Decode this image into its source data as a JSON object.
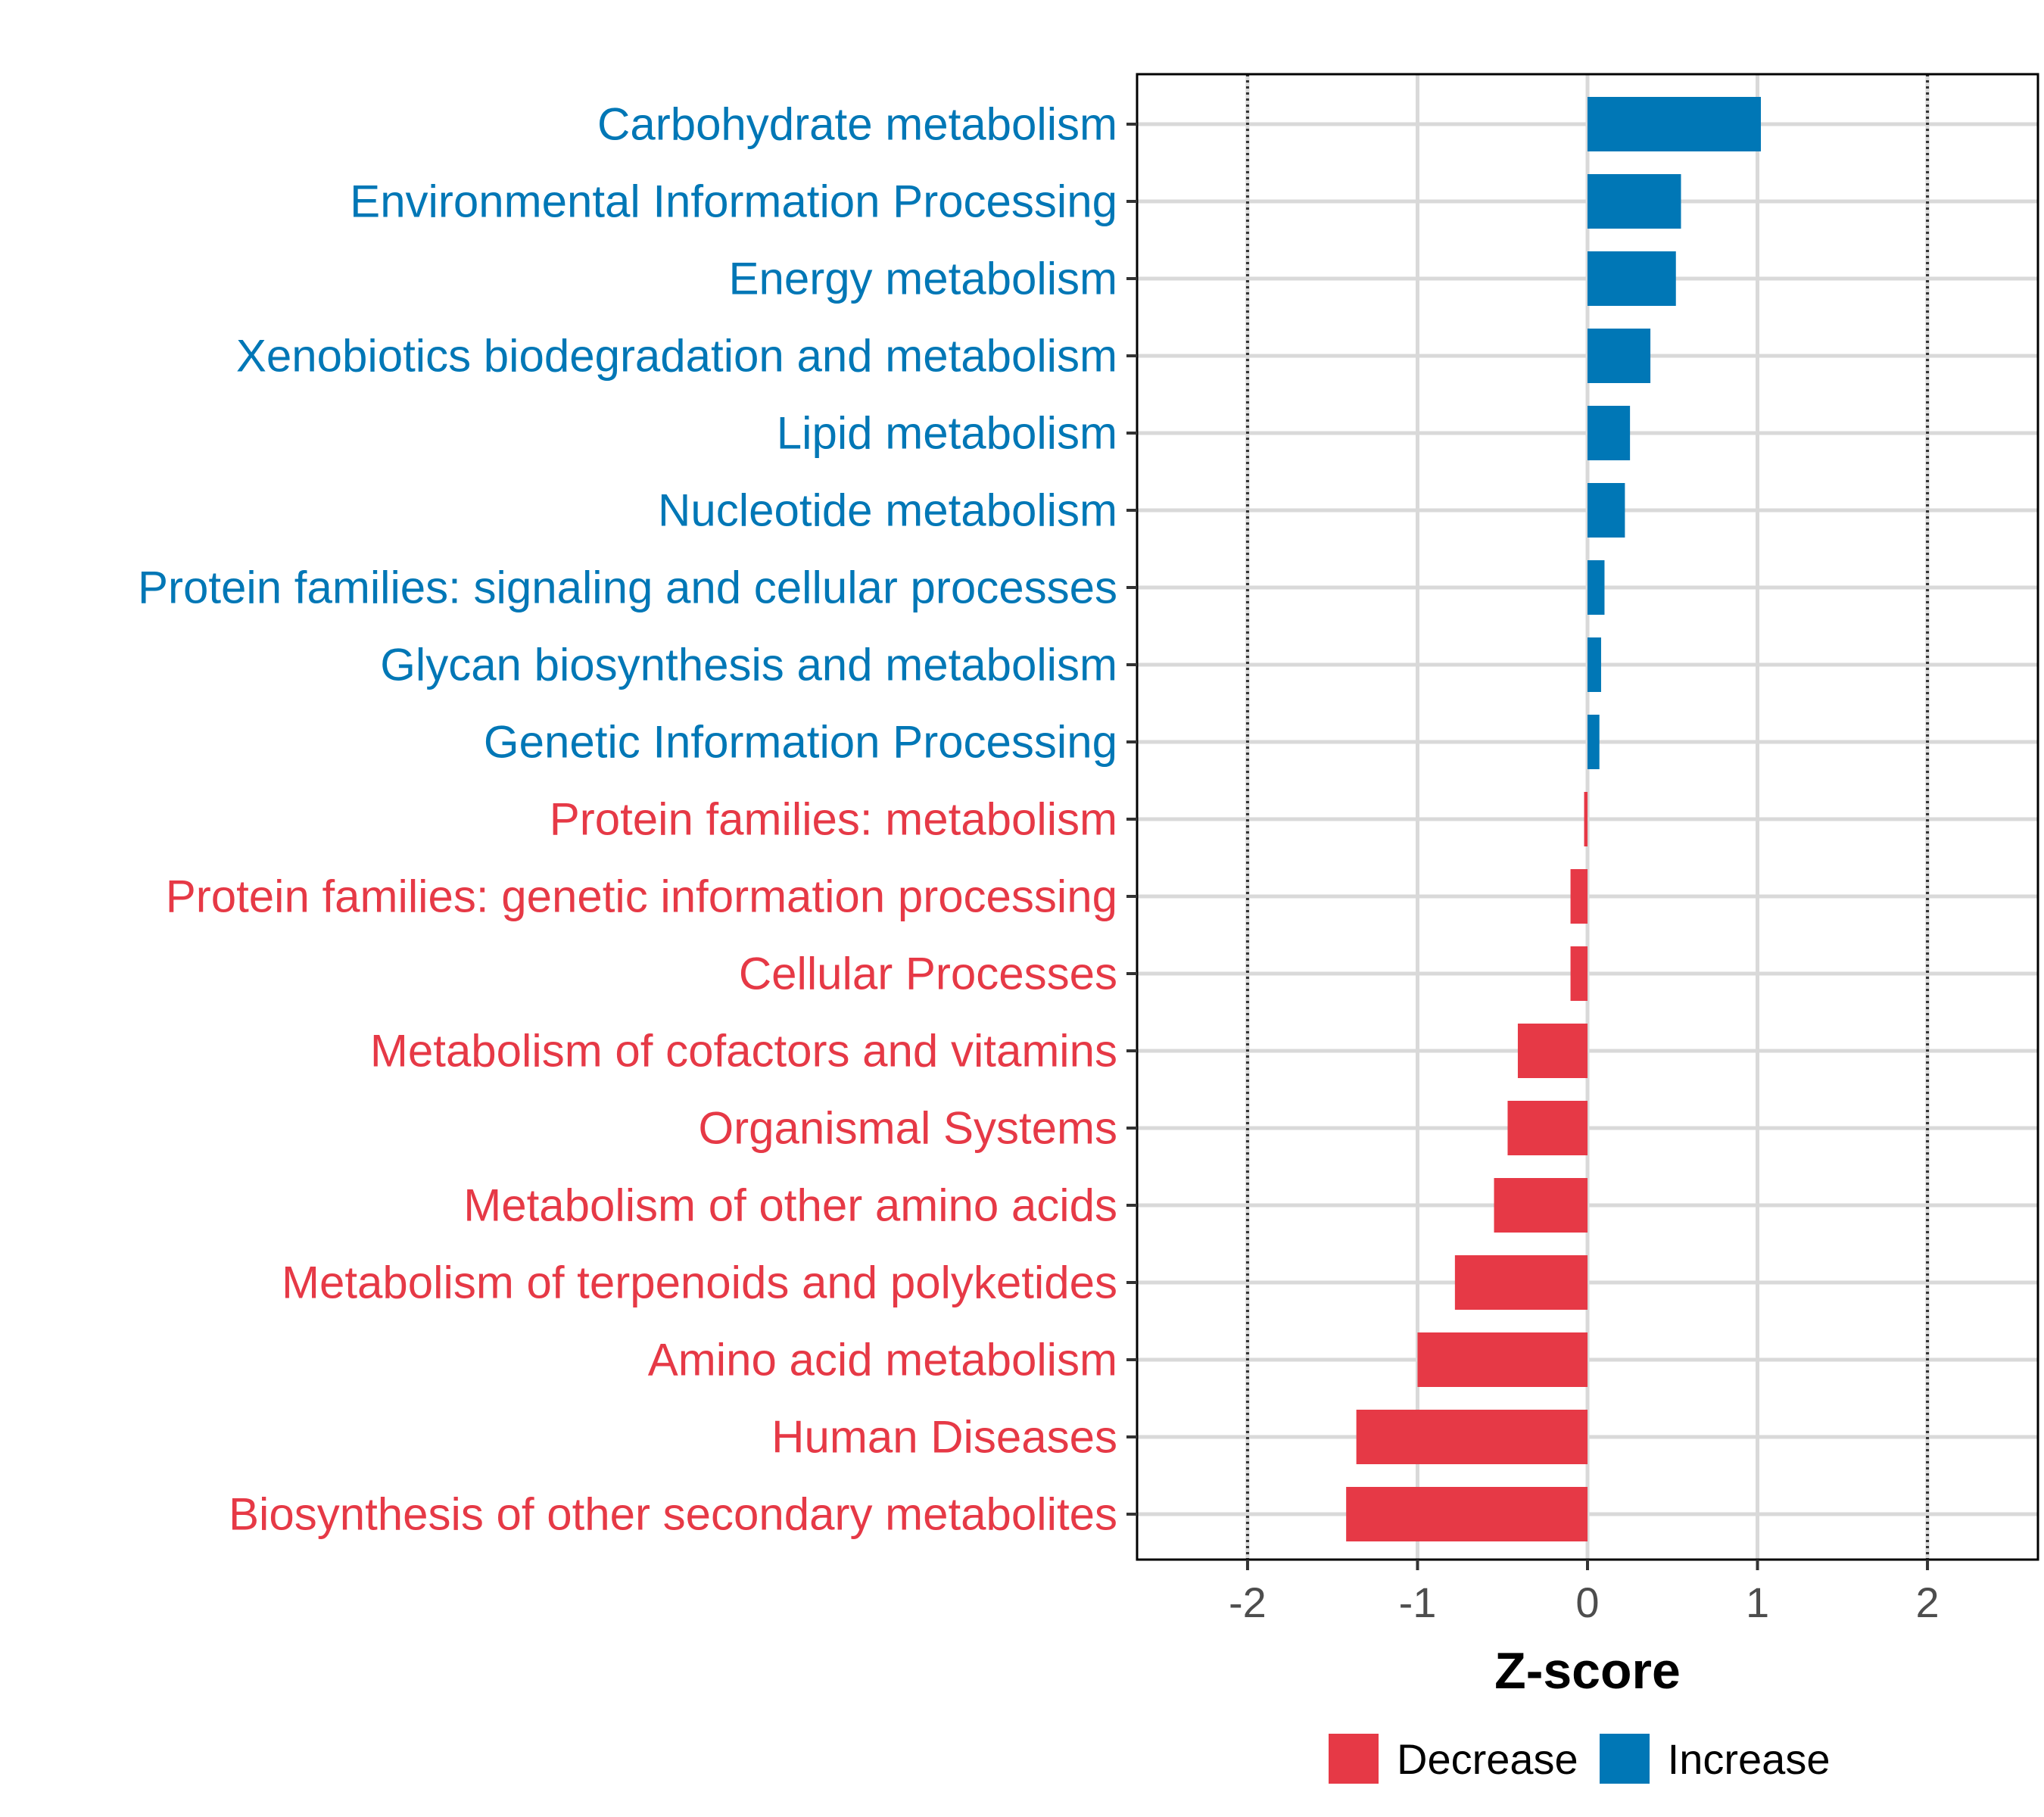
{
  "chart_data": {
    "type": "bar",
    "orientation": "horizontal",
    "categories": [
      "Carbohydrate metabolism",
      "Environmental Information Processing",
      "Energy metabolism",
      "Xenobiotics biodegradation and metabolism",
      "Lipid metabolism",
      "Nucleotide metabolism",
      "Protein families: signaling and cellular processes",
      "Glycan biosynthesis and metabolism",
      "Genetic Information Processing",
      "Protein families: metabolism",
      "Protein families: genetic information processing",
      "Cellular Processes",
      "Metabolism of cofactors and vitamins",
      "Organismal Systems",
      "Metabolism of other amino acids",
      "Metabolism of terpenoids and polyketides",
      "Amino acid metabolism",
      "Human Diseases",
      "Biosynthesis of other secondary metabolites"
    ],
    "values": [
      1.02,
      0.55,
      0.52,
      0.37,
      0.25,
      0.22,
      0.1,
      0.08,
      0.07,
      -0.02,
      -0.1,
      -0.1,
      -0.41,
      -0.47,
      -0.55,
      -0.78,
      -1.0,
      -1.36,
      -1.42
    ],
    "groups": [
      "Increase",
      "Increase",
      "Increase",
      "Increase",
      "Increase",
      "Increase",
      "Increase",
      "Increase",
      "Increase",
      "Decrease",
      "Decrease",
      "Decrease",
      "Decrease",
      "Decrease",
      "Decrease",
      "Decrease",
      "Decrease",
      "Decrease",
      "Decrease"
    ],
    "xlabel": "Z-score",
    "ylabel": "",
    "xlim": [
      -2.65,
      2.65
    ],
    "xticks": [
      -2,
      -1,
      0,
      1,
      2
    ],
    "xtick_labels": [
      "-2",
      "-1",
      "0",
      "1",
      "2"
    ],
    "reference_lines": [
      -2,
      2
    ],
    "grid": true,
    "legend": {
      "position": "bottom",
      "items": [
        {
          "label": "Decrease",
          "color": "#E63946"
        },
        {
          "label": "Increase",
          "color": "#0077B6"
        }
      ]
    },
    "colors": {
      "Increase": "#0077B6",
      "Decrease": "#E63946"
    }
  }
}
